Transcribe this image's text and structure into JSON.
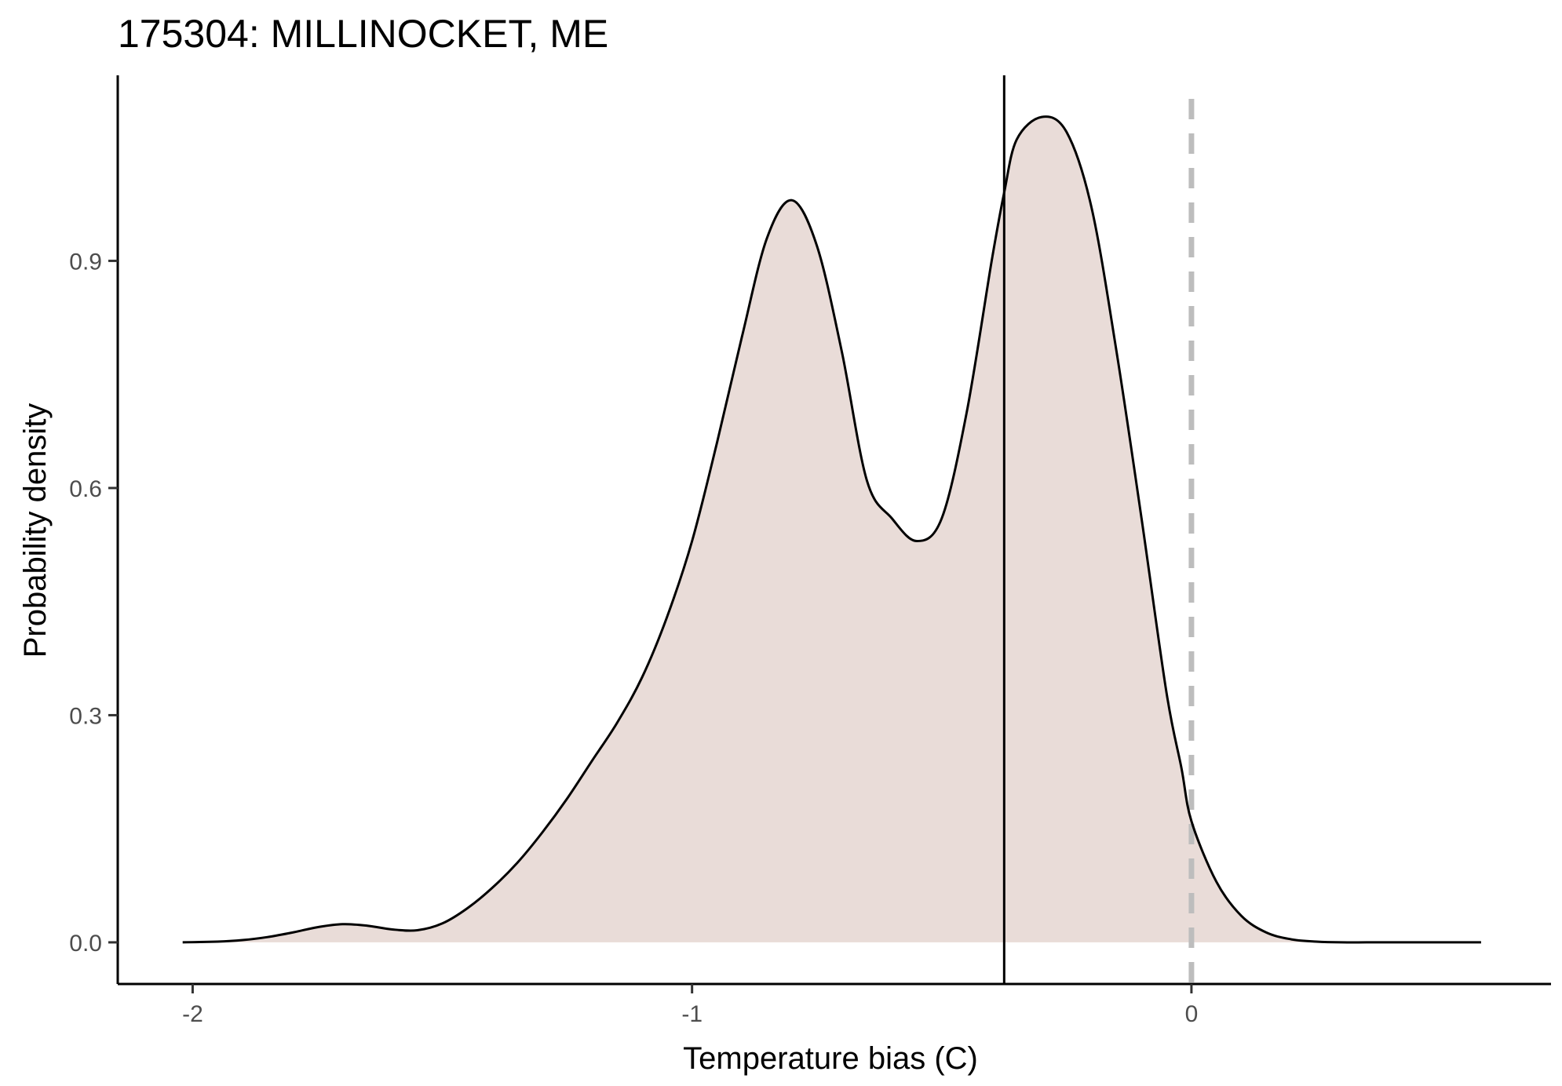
{
  "chart_data": {
    "type": "area",
    "title": "175304: MILLINOCKET, ME",
    "xlabel": "Temperature bias (C)",
    "ylabel": "Probability density",
    "xlim": [
      -2.15,
      0.72
    ],
    "ylim": [
      -0.055,
      1.145
    ],
    "x_ticks": [
      -2,
      -1,
      0
    ],
    "x_tick_labels": [
      "-2",
      "-1",
      "0"
    ],
    "y_ticks": [
      0.0,
      0.3,
      0.6,
      0.9
    ],
    "y_tick_labels": [
      "0.0",
      "0.3",
      "0.6",
      "0.9"
    ],
    "grid": false,
    "legend": "none",
    "colors": {
      "fill": "#e9dcd8",
      "line": "#000000",
      "reference_line": "#bdbdbd",
      "tick_text": "#4d4d4d"
    },
    "series": [
      {
        "x": [
          -2.02,
          -1.95,
          -1.9,
          -1.85,
          -1.8,
          -1.75,
          -1.7,
          -1.65,
          -1.6,
          -1.55,
          -1.5,
          -1.45,
          -1.4,
          -1.35,
          -1.3,
          -1.25,
          -1.2,
          -1.15,
          -1.1,
          -1.05,
          -1.0,
          -0.95,
          -0.9,
          -0.85,
          -0.8,
          -0.75,
          -0.7,
          -0.65,
          -0.6,
          -0.55,
          -0.5,
          -0.45,
          -0.4,
          -0.375,
          -0.35,
          -0.3,
          -0.25,
          -0.2,
          -0.15,
          -0.1,
          -0.05,
          -0.02,
          0.0,
          0.05,
          0.1,
          0.15,
          0.2,
          0.25,
          0.3,
          0.35,
          0.4,
          0.45,
          0.5,
          0.55,
          0.58
        ],
        "y": [
          0.0,
          0.001,
          0.003,
          0.007,
          0.013,
          0.02,
          0.024,
          0.022,
          0.017,
          0.016,
          0.025,
          0.045,
          0.072,
          0.105,
          0.145,
          0.19,
          0.24,
          0.29,
          0.35,
          0.43,
          0.53,
          0.66,
          0.8,
          0.93,
          0.98,
          0.92,
          0.78,
          0.61,
          0.56,
          0.53,
          0.56,
          0.7,
          0.9,
          0.99,
          1.06,
          1.09,
          1.07,
          0.97,
          0.78,
          0.56,
          0.33,
          0.23,
          0.16,
          0.08,
          0.035,
          0.013,
          0.004,
          0.001,
          0.0,
          0.0,
          0.0,
          0.0,
          0.0,
          0.0,
          0.0
        ]
      }
    ],
    "vertical_lines": [
      {
        "x": -0.375,
        "style": "solid"
      },
      {
        "x": 0.0,
        "style": "dashed"
      }
    ]
  }
}
